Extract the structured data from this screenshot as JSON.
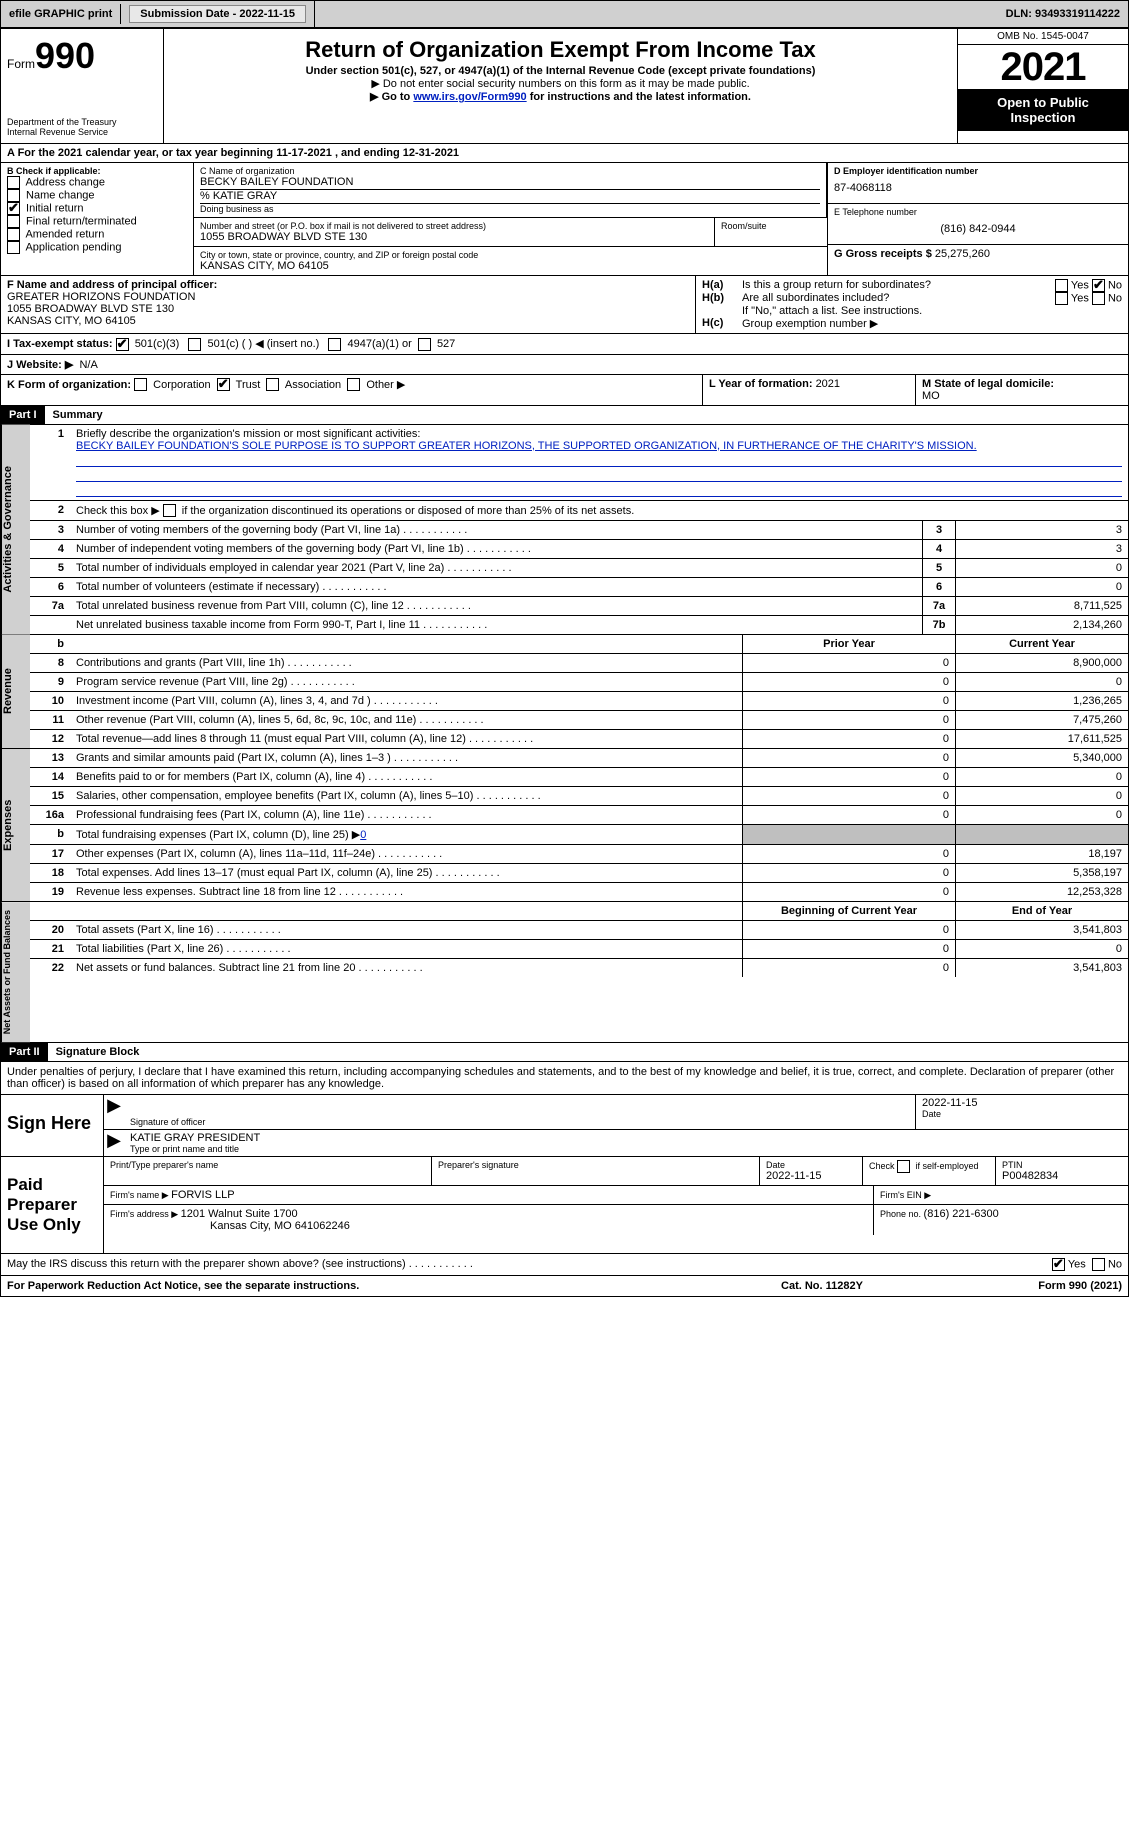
{
  "topbar": {
    "efile": "efile GRAPHIC print",
    "submission_label": "Submission Date - ",
    "submission_date": "2022-11-15",
    "dln_label": "DLN: ",
    "dln": "93493319114222"
  },
  "header": {
    "form_word": "Form",
    "form_num": "990",
    "dept": "Department of the Treasury",
    "irs": "Internal Revenue Service",
    "title": "Return of Organization Exempt From Income Tax",
    "subtitle": "Under section 501(c), 527, or 4947(a)(1) of the Internal Revenue Code (except private foundations)",
    "note1": "▶ Do not enter social security numbers on this form as it may be made public.",
    "note2_pre": "▶ Go to ",
    "note2_link": "www.irs.gov/Form990",
    "note2_post": " for instructions and the latest information.",
    "omb": "OMB No. 1545-0047",
    "year": "2021",
    "open": "Open to Public Inspection"
  },
  "section_a": {
    "text_pre": "A For the 2021 calendar year, or tax year beginning ",
    "begin": "11-17-2021",
    "mid": " , and ending ",
    "end": "12-31-2021"
  },
  "col_b": {
    "header": "B Check if applicable:",
    "items": [
      {
        "label": "Address change",
        "checked": false
      },
      {
        "label": "Name change",
        "checked": false
      },
      {
        "label": "Initial return",
        "checked": true
      },
      {
        "label": "Final return/terminated",
        "checked": false
      },
      {
        "label": "Amended return",
        "checked": false
      },
      {
        "label": "Application pending",
        "checked": false
      }
    ]
  },
  "col_c": {
    "name_label": "C Name of organization",
    "name": "BECKY BAILEY FOUNDATION",
    "care_of": "% KATIE GRAY",
    "dba_label": "Doing business as",
    "dba": "",
    "street_label": "Number and street (or P.O. box if mail is not delivered to street address)",
    "street": "1055 BROADWAY BLVD STE 130",
    "room_label": "Room/suite",
    "city_label": "City or town, state or province, country, and ZIP or foreign postal code",
    "city": "KANSAS CITY, MO  64105"
  },
  "col_d": {
    "ein_label": "D Employer identification number",
    "ein": "87-4068118",
    "phone_label": "E Telephone number",
    "phone": "(816) 842-0944",
    "gross_label": "G Gross receipts $ ",
    "gross": "25,275,260"
  },
  "section_f": {
    "label": "F Name and address of principal officer:",
    "name": "GREATER HORIZONS FOUNDATION",
    "street": "1055 BROADWAY BLVD STE 130",
    "city": "KANSAS CITY, MO  64105"
  },
  "section_h": {
    "h_a": "Is this a group return for subordinates?",
    "h_a_yes": "Yes",
    "h_a_no": "No",
    "h_a_checked": "No",
    "h_b": "Are all subordinates included?",
    "h_b_yes": "Yes",
    "h_b_no": "No",
    "h_b_note": "If \"No,\" attach a list. See instructions.",
    "h_c": "Group exemption number ▶"
  },
  "section_i": {
    "label": "I    Tax-exempt status:",
    "o1": "501(c)(3)",
    "o1_checked": true,
    "o2": "501(c) (  ) ◀ (insert no.)",
    "o3": "4947(a)(1) or",
    "o4": "527"
  },
  "section_j": {
    "label": "J   Website: ▶",
    "value": "N/A"
  },
  "section_k": {
    "label": "K Form of organization:",
    "o1": "Corporation",
    "o2": "Trust",
    "o2_checked": true,
    "o3": "Association",
    "o4": "Other ▶"
  },
  "section_l": {
    "label": "L Year of formation: ",
    "value": "2021"
  },
  "section_m": {
    "label": "M State of legal domicile:",
    "value": "MO"
  },
  "part1": {
    "header": "Part I",
    "title": "Summary",
    "q1_label": "Briefly describe the organization's mission or most significant activities:",
    "q1_text": "BECKY BAILEY FOUNDATION'S SOLE PURPOSE IS TO SUPPORT GREATER HORIZONS, THE SUPPORTED ORGANIZATION, IN FURTHERANCE OF THE CHARITY'S MISSION.",
    "q2": "Check this box ▶       if the organization discontinued its operations or disposed of more than 25% of its net assets.",
    "rows_ag": [
      {
        "n": "3",
        "d": "Number of voting members of the governing body (Part VI, line 1a)",
        "box": "3",
        "v": "3"
      },
      {
        "n": "4",
        "d": "Number of independent voting members of the governing body (Part VI, line 1b)",
        "box": "4",
        "v": "3"
      },
      {
        "n": "5",
        "d": "Total number of individuals employed in calendar year 2021 (Part V, line 2a)",
        "box": "5",
        "v": "0"
      },
      {
        "n": "6",
        "d": "Total number of volunteers (estimate if necessary)",
        "box": "6",
        "v": "0"
      },
      {
        "n": "7a",
        "d": "Total unrelated business revenue from Part VIII, column (C), line 12",
        "box": "7a",
        "v": "8,711,525"
      },
      {
        "n": "",
        "d": "Net unrelated business taxable income from Form 990-T, Part I, line 11",
        "box": "7b",
        "v": "2,134,260"
      }
    ],
    "col_py": "Prior Year",
    "col_cy": "Current Year",
    "rows_rev": [
      {
        "n": "8",
        "d": "Contributions and grants (Part VIII, line 1h)",
        "py": "0",
        "cy": "8,900,000"
      },
      {
        "n": "9",
        "d": "Program service revenue (Part VIII, line 2g)",
        "py": "0",
        "cy": "0"
      },
      {
        "n": "10",
        "d": "Investment income (Part VIII, column (A), lines 3, 4, and 7d )",
        "py": "0",
        "cy": "1,236,265"
      },
      {
        "n": "11",
        "d": "Other revenue (Part VIII, column (A), lines 5, 6d, 8c, 9c, 10c, and 11e)",
        "py": "0",
        "cy": "7,475,260"
      },
      {
        "n": "12",
        "d": "Total revenue—add lines 8 through 11 (must equal Part VIII, column (A), line 12)",
        "py": "0",
        "cy": "17,611,525"
      }
    ],
    "rows_exp": [
      {
        "n": "13",
        "d": "Grants and similar amounts paid (Part IX, column (A), lines 1–3 )",
        "py": "0",
        "cy": "5,340,000"
      },
      {
        "n": "14",
        "d": "Benefits paid to or for members (Part IX, column (A), line 4)",
        "py": "0",
        "cy": "0"
      },
      {
        "n": "15",
        "d": "Salaries, other compensation, employee benefits (Part IX, column (A), lines 5–10)",
        "py": "0",
        "cy": "0"
      },
      {
        "n": "16a",
        "d": "Professional fundraising fees (Part IX, column (A), line 11e)",
        "py": "0",
        "cy": "0"
      },
      {
        "n": "b",
        "d": "Total fundraising expenses (Part IX, column (D), line 25) ▶",
        "py": "shade",
        "cy": "shade",
        "extra": "0"
      },
      {
        "n": "17",
        "d": "Other expenses (Part IX, column (A), lines 11a–11d, 11f–24e)",
        "py": "0",
        "cy": "18,197"
      },
      {
        "n": "18",
        "d": "Total expenses. Add lines 13–17 (must equal Part IX, column (A), line 25)",
        "py": "0",
        "cy": "5,358,197"
      },
      {
        "n": "19",
        "d": "Revenue less expenses. Subtract line 18 from line 12",
        "py": "0",
        "cy": "12,253,328"
      }
    ],
    "col_bcy": "Beginning of Current Year",
    "col_eoy": "End of Year",
    "rows_net": [
      {
        "n": "20",
        "d": "Total assets (Part X, line 16)",
        "py": "0",
        "cy": "3,541,803"
      },
      {
        "n": "21",
        "d": "Total liabilities (Part X, line 26)",
        "py": "0",
        "cy": "0"
      },
      {
        "n": "22",
        "d": "Net assets or fund balances. Subtract line 21 from line 20",
        "py": "0",
        "cy": "3,541,803"
      }
    ],
    "vtab_ag": "Activities & Governance",
    "vtab_rev": "Revenue",
    "vtab_exp": "Expenses",
    "vtab_net": "Net Assets or Fund Balances"
  },
  "part2": {
    "header": "Part II",
    "title": "Signature Block",
    "penalty": "Under penalties of perjury, I declare that I have examined this return, including accompanying schedules and statements, and to the best of my knowledge and belief, it is true, correct, and complete. Declaration of preparer (other than officer) is based on all information of which preparer has any knowledge.",
    "sign_here": "Sign Here",
    "sig_officer": "Signature of officer",
    "sig_date": "Date",
    "sig_date_val": "2022-11-15",
    "officer_name": "KATIE GRAY PRESIDENT",
    "officer_label": "Type or print name and title",
    "paid_prep": "Paid Preparer Use Only",
    "prep_name_label": "Print/Type preparer's name",
    "prep_sig_label": "Preparer's signature",
    "prep_date_label": "Date",
    "prep_date": "2022-11-15",
    "prep_check": "Check       if self-employed",
    "ptin_label": "PTIN",
    "ptin": "P00482834",
    "firm_name_label": "Firm's name    ▶ ",
    "firm_name": "FORVIS LLP",
    "firm_ein_label": "Firm's EIN ▶",
    "firm_addr_label": "Firm's address ▶ ",
    "firm_addr1": "1201 Walnut Suite 1700",
    "firm_addr2": "Kansas City, MO  641062246",
    "firm_phone_label": "Phone no. ",
    "firm_phone": "(816) 221-6300",
    "discuss": "May the IRS discuss this return with the preparer shown above? (see instructions)",
    "discuss_yes": "Yes",
    "discuss_no": "No",
    "discuss_checked": "Yes"
  },
  "footer": {
    "left": "For Paperwork Reduction Act Notice, see the separate instructions.",
    "mid": "Cat. No. 11282Y",
    "right": "Form 990 (2021)"
  }
}
